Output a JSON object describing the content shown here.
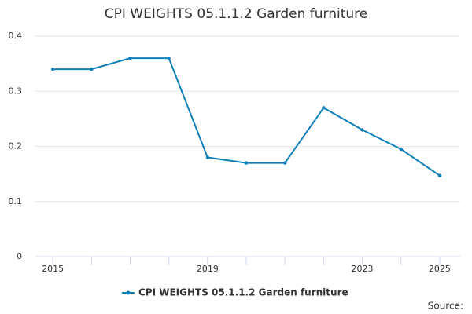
{
  "chart_data": {
    "type": "line",
    "title": "CPI WEIGHTS 05.1.1.2 Garden furniture",
    "x": [
      2015,
      2016,
      2017,
      2018,
      2019,
      2020,
      2021,
      2022,
      2023,
      2024,
      2025
    ],
    "series": [
      {
        "name": "CPI WEIGHTS 05.1.1.2 Garden furniture",
        "color": "#0f7fb9",
        "values": [
          0.34,
          0.34,
          0.36,
          0.36,
          0.18,
          0.17,
          0.17,
          0.27,
          0.23,
          0.195,
          0.147
        ]
      }
    ],
    "xlim": [
      2014.55,
      2025.53
    ],
    "xticks": [
      2015,
      2019,
      2023,
      2025
    ],
    "ylim": [
      0,
      0.4
    ],
    "yticks": [
      0,
      0.1,
      0.2,
      0.3,
      0.4
    ],
    "grid": true,
    "legend": "bottom",
    "source": "Source:"
  }
}
